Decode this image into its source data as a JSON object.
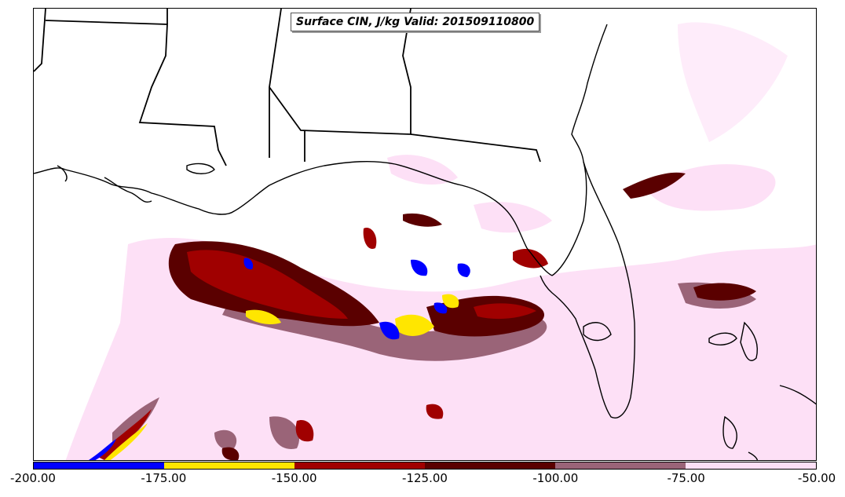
{
  "title": "Surface CIN, J/kg Valid: 201509110800",
  "colorbar": {
    "colors": [
      "#0000ff",
      "#ffe600",
      "#a00000",
      "#5a0000",
      "#9a6478",
      "#fde0f6"
    ],
    "ticks": [
      "-200.00",
      "-175.00",
      "-150.00",
      "-125.00",
      "-100.00",
      "-75.00",
      "-50.00"
    ]
  },
  "colors": {
    "light_pink": "#fde0f6",
    "mauve": "#9a6478",
    "dark_red": "#5a0000",
    "red": "#a00000",
    "yellow": "#ffe600",
    "blue": "#0000ff",
    "outline": "#000000"
  }
}
